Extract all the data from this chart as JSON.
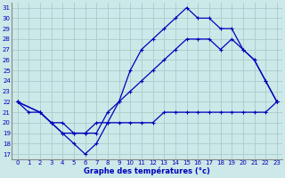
{
  "title": "Graphe des températures (°c)",
  "bg_color": "#cce8e8",
  "grid_color": "#aacccc",
  "line_color": "#0000bb",
  "x_ticks": [
    0,
    1,
    2,
    3,
    4,
    5,
    6,
    7,
    8,
    9,
    10,
    11,
    12,
    13,
    14,
    15,
    16,
    17,
    18,
    19,
    20,
    21,
    22,
    23
  ],
  "y_ticks": [
    17,
    18,
    19,
    20,
    21,
    22,
    23,
    24,
    25,
    26,
    27,
    28,
    29,
    30,
    31
  ],
  "xlim": [
    -0.5,
    23.5
  ],
  "ylim": [
    16.5,
    31.5
  ],
  "line_top_x": [
    0,
    2,
    3,
    4,
    5,
    6,
    7,
    8,
    9,
    10,
    11,
    12,
    13,
    14,
    15,
    16,
    17,
    18,
    19,
    20,
    21,
    22,
    23
  ],
  "line_top_y": [
    22,
    21,
    20,
    19,
    18,
    17,
    18,
    20,
    22,
    25,
    27,
    28,
    29,
    30,
    31,
    30,
    30,
    29,
    29,
    27,
    26,
    24,
    22
  ],
  "line_mid_x": [
    0,
    2,
    3,
    4,
    5,
    6,
    7,
    8,
    9,
    10,
    11,
    12,
    13,
    14,
    15,
    16,
    17,
    18,
    19,
    20,
    21,
    22,
    23
  ],
  "line_mid_y": [
    22,
    21,
    20,
    20,
    19,
    19,
    19,
    21,
    22,
    23,
    24,
    25,
    26,
    27,
    28,
    28,
    28,
    27,
    28,
    27,
    26,
    24,
    22
  ],
  "line_bot_x": [
    0,
    1,
    2,
    3,
    4,
    5,
    6,
    7,
    8,
    9,
    10,
    11,
    12,
    13,
    14,
    15,
    16,
    17,
    18,
    19,
    20,
    21,
    22,
    23
  ],
  "line_bot_y": [
    22,
    21,
    21,
    20,
    19,
    19,
    19,
    20,
    20,
    20,
    20,
    20,
    20,
    21,
    21,
    21,
    21,
    21,
    21,
    21,
    21,
    21,
    21,
    22
  ]
}
